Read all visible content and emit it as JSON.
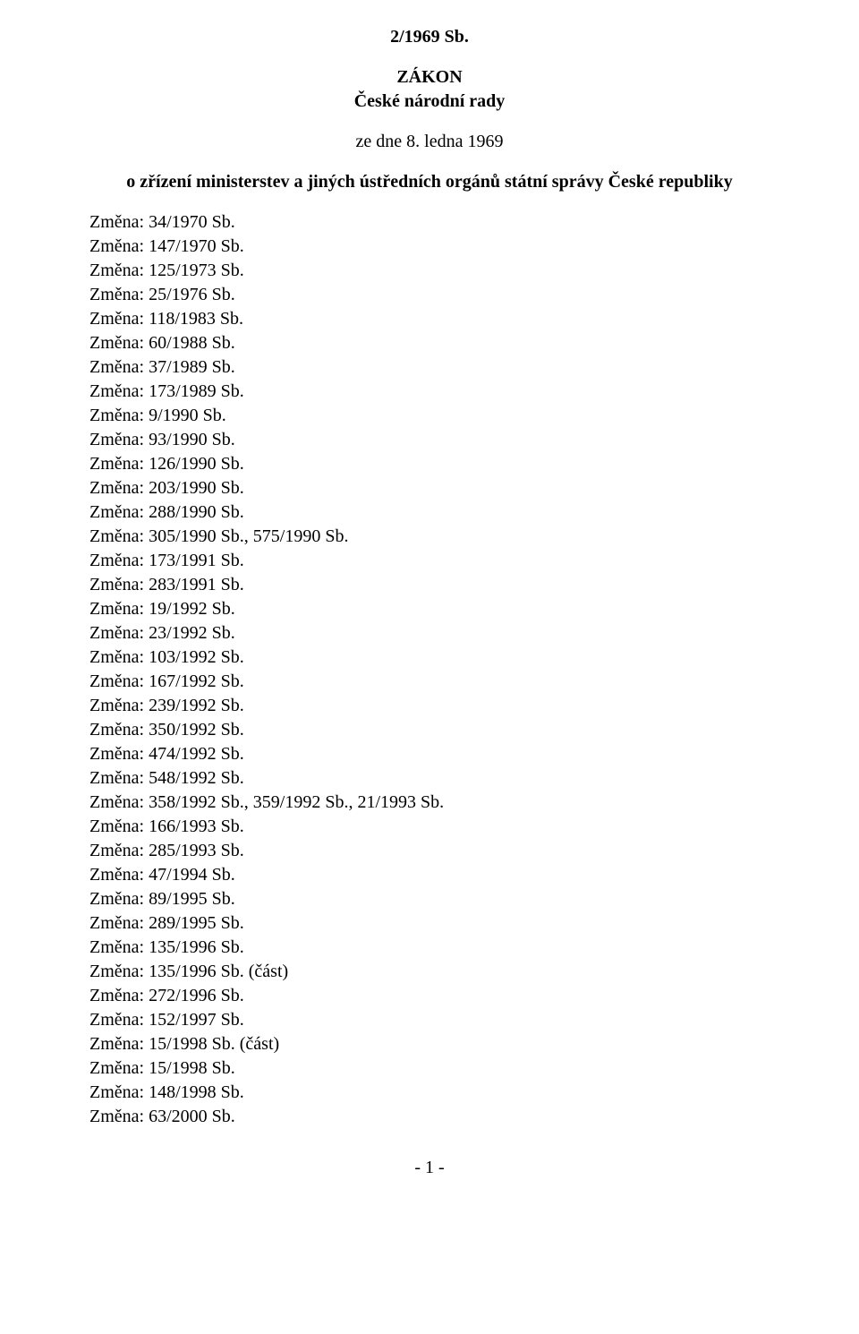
{
  "header": {
    "citation": "2/1969 Sb.",
    "doctype": "ZÁKON",
    "authority": "České národní rady",
    "dateline": "ze dne 8. ledna 1969",
    "subject": "o zřízení ministerstev a jiných ústředních orgánů státní správy České republiky"
  },
  "changes": [
    "Změna: 34/1970 Sb.",
    "Změna: 147/1970 Sb.",
    "Změna: 125/1973 Sb.",
    "Změna: 25/1976 Sb.",
    "Změna: 118/1983 Sb.",
    "Změna: 60/1988 Sb.",
    "Změna: 37/1989 Sb.",
    "Změna: 173/1989 Sb.",
    "Změna: 9/1990 Sb.",
    "Změna: 93/1990 Sb.",
    "Změna: 126/1990 Sb.",
    "Změna: 203/1990 Sb.",
    "Změna: 288/1990 Sb.",
    "Změna: 305/1990 Sb., 575/1990 Sb.",
    "Změna: 173/1991 Sb.",
    "Změna: 283/1991 Sb.",
    "Změna: 19/1992 Sb.",
    "Změna: 23/1992 Sb.",
    "Změna: 103/1992 Sb.",
    "Změna: 167/1992 Sb.",
    "Změna: 239/1992 Sb.",
    "Změna: 350/1992 Sb.",
    "Změna: 474/1992 Sb.",
    "Změna: 548/1992 Sb.",
    "Změna: 358/1992 Sb., 359/1992 Sb., 21/1993 Sb.",
    "Změna: 166/1993 Sb.",
    "Změna: 285/1993 Sb.",
    "Změna: 47/1994 Sb.",
    "Změna: 89/1995 Sb.",
    "Změna: 289/1995 Sb.",
    "Změna: 135/1996 Sb.",
    "Změna: 135/1996 Sb. (část)",
    "Změna: 272/1996 Sb.",
    "Změna: 152/1997 Sb.",
    "Změna: 15/1998 Sb. (část)",
    "Změna: 15/1998 Sb.",
    "Změna: 148/1998 Sb.",
    "Změna: 63/2000 Sb."
  ],
  "page": "- 1 -"
}
